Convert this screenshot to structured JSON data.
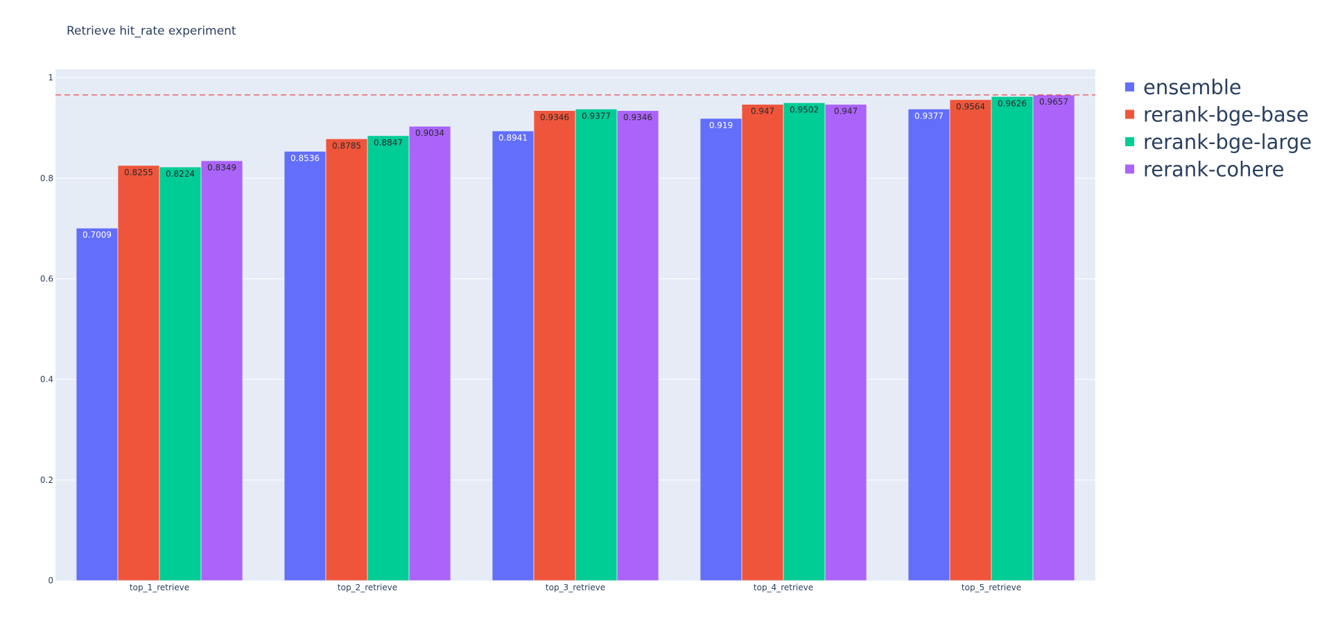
{
  "chart_data": {
    "type": "bar",
    "title": "Retrieve hit_rate experiment",
    "xlabel": "",
    "ylabel": "",
    "categories": [
      "top_1_retrieve",
      "top_2_retrieve",
      "top_3_retrieve",
      "top_4_retrieve",
      "top_5_retrieve"
    ],
    "series": [
      {
        "name": "ensemble",
        "color": "#636efa",
        "label_color": "#ffffff",
        "values": [
          0.7009,
          0.8536,
          0.8941,
          0.919,
          0.9377
        ],
        "labels": [
          "0.7009",
          "0.8536",
          "0.8941",
          "0.919",
          "0.9377"
        ]
      },
      {
        "name": "rerank-bge-base",
        "color": "#ef553b",
        "label_color": "#2a2a2a",
        "values": [
          0.8255,
          0.8785,
          0.9346,
          0.947,
          0.9564
        ],
        "labels": [
          "0.8255",
          "0.8785",
          "0.9346",
          "0.947",
          "0.9564"
        ]
      },
      {
        "name": "rerank-bge-large",
        "color": "#00cc96",
        "label_color": "#2a2a2a",
        "values": [
          0.8224,
          0.8847,
          0.9377,
          0.9502,
          0.9626
        ],
        "labels": [
          "0.8224",
          "0.8847",
          "0.9377",
          "0.9502",
          "0.9626"
        ]
      },
      {
        "name": "rerank-cohere",
        "color": "#ab63fa",
        "label_color": "#2a2a2a",
        "values": [
          0.8349,
          0.9034,
          0.9346,
          0.947,
          0.9657
        ],
        "labels": [
          "0.8349",
          "0.9034",
          "0.9346",
          "0.947",
          "0.9657"
        ]
      }
    ],
    "ylim": [
      0,
      1.0167
    ],
    "yticks": [
      0,
      0.2,
      0.4,
      0.6,
      0.8,
      1
    ],
    "ytick_labels": [
      "0",
      "0.2",
      "0.4",
      "0.6",
      "0.8",
      "1"
    ],
    "reference_line": {
      "y": 0.9657,
      "color": "#e8494a",
      "style": "dashed"
    },
    "grid": true,
    "legend": "right",
    "plot_background": "#e5ecf6"
  }
}
